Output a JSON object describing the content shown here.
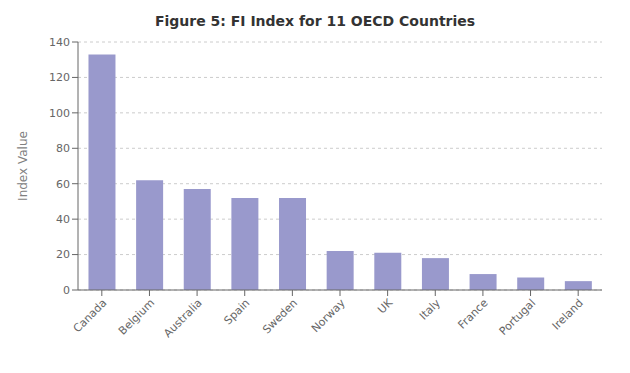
{
  "chart_data": {
    "type": "bar",
    "title": "Figure 5: FI Index for 11 OECD Countries",
    "ylabel": "Index Value",
    "categories": [
      "Canada",
      "Belgium",
      "Australia",
      "Spain",
      "Sweden",
      "Norway",
      "UK",
      "Italy",
      "France",
      "Portugal",
      "Ireland"
    ],
    "values": [
      133,
      62,
      57,
      52,
      52,
      22,
      21,
      18,
      9,
      7,
      5
    ],
    "color": "#9999cc",
    "ylim": [
      0,
      140
    ],
    "yticks": [
      0,
      20,
      40,
      60,
      80,
      100,
      120,
      140
    ],
    "grid": true
  }
}
